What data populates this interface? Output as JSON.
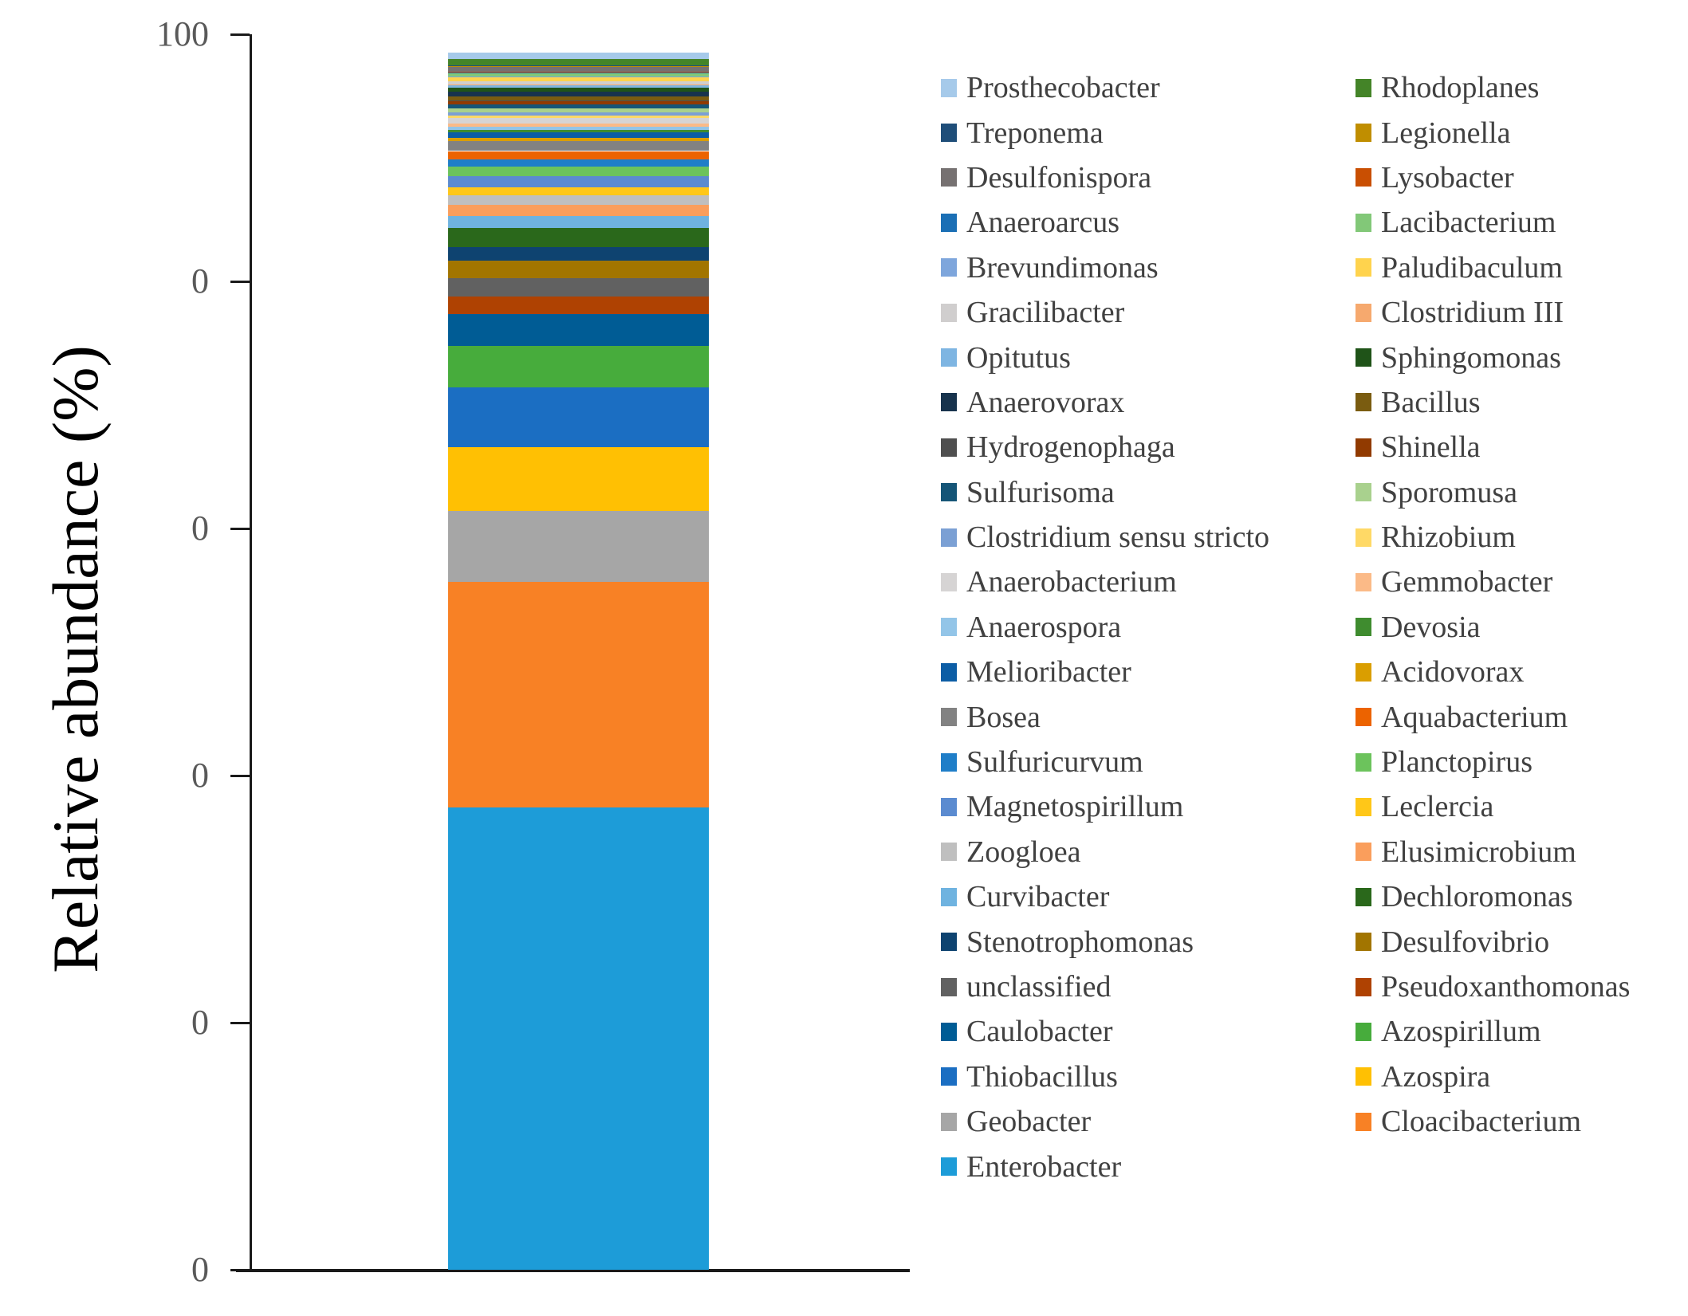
{
  "chart_data": {
    "type": "bar",
    "stacked": true,
    "title": "",
    "xlabel": "",
    "ylabel": "Relative abundance (%)",
    "ylim": [
      0,
      100
    ],
    "y_tick_labels": [
      "100",
      "0",
      "0",
      "0",
      "0",
      "0"
    ],
    "grid": false,
    "legend_position": "right",
    "categories": [
      ""
    ],
    "axis_color": "#1a1a1a",
    "tick_label_color": "#595959",
    "legend_text_color": "#414141",
    "series_bottom_to_top": [
      {
        "name": "Enterobacter",
        "color": "#1D9CD8",
        "value": 37.4
      },
      {
        "name": "Cloacibacterium",
        "color": "#F88125",
        "value": 18.3
      },
      {
        "name": "Geobacter",
        "color": "#A6A6A6",
        "value": 5.7
      },
      {
        "name": "Azospira",
        "color": "#FFC003",
        "value": 5.2
      },
      {
        "name": "Thiobacillus",
        "color": "#1B6EC2",
        "value": 4.8
      },
      {
        "name": "Azospirillum",
        "color": "#47AC3C",
        "value": 3.35
      },
      {
        "name": "Caulobacter",
        "color": "#005C95",
        "value": 2.6
      },
      {
        "name": "Pseudoxanthomonas",
        "color": "#AF4202",
        "value": 1.4
      },
      {
        "name": "unclassified",
        "color": "#616161",
        "value": 1.5
      },
      {
        "name": "Desulfovibrio",
        "color": "#A27500",
        "value": 1.4
      },
      {
        "name": "Stenotrophomonas",
        "color": "#0E4370",
        "value": 1.15
      },
      {
        "name": "Dechloromonas",
        "color": "#2A681B",
        "value": 1.5
      },
      {
        "name": "Curvibacter",
        "color": "#6FB3E0",
        "value": 1.0
      },
      {
        "name": "Elusimicrobium",
        "color": "#FA9E5C",
        "value": 0.9
      },
      {
        "name": "Zoogloea",
        "color": "#BFBFBF",
        "value": 0.8
      },
      {
        "name": "Leclercia",
        "color": "#FFC718",
        "value": 0.6
      },
      {
        "name": "Magnetospirillum",
        "color": "#5B8BD0",
        "value": 0.9
      },
      {
        "name": "Planctopirus",
        "color": "#6CC35C",
        "value": 0.8
      },
      {
        "name": "Sulfuricurvum",
        "color": "#1F7EC8",
        "value": 0.6
      },
      {
        "name": "Aquabacterium",
        "color": "#EC6300",
        "value": 0.65
      },
      {
        "name": "Bosea",
        "color": "#828282",
        "value": 0.8
      },
      {
        "name": "Acidovorax",
        "color": "#DA9E00",
        "value": 0.25
      },
      {
        "name": "Melioribacter",
        "color": "#0C5DA5",
        "value": 0.45
      },
      {
        "name": "Devosia",
        "color": "#3F8C2F",
        "value": 0.2
      },
      {
        "name": "Anaerospora",
        "color": "#93C5E8",
        "value": 0.25
      },
      {
        "name": "Gemmobacter",
        "color": "#FBBA87",
        "value": 0.3
      },
      {
        "name": "Anaerobacterium",
        "color": "#D6D4D4",
        "value": 0.4
      },
      {
        "name": "Rhizobium",
        "color": "#FFD966",
        "value": 0.25
      },
      {
        "name": "Clostridium sensu stricto",
        "color": "#7BA0D4",
        "value": 0.25
      },
      {
        "name": "Sporomusa",
        "color": "#A9D18E",
        "value": 0.3
      },
      {
        "name": "Sulfurisoma",
        "color": "#155577",
        "value": 0.3
      },
      {
        "name": "Shinella",
        "color": "#913A00",
        "value": 0.3
      },
      {
        "name": "Hydrogenophaga",
        "color": "#4F4F4F",
        "value": 0.05
      },
      {
        "name": "Bacillus",
        "color": "#7A5C10",
        "value": 0.3
      },
      {
        "name": "Anaerovorax",
        "color": "#17334D",
        "value": 0.4
      },
      {
        "name": "Sphingomonas",
        "color": "#1F5318",
        "value": 0.3
      },
      {
        "name": "Opitutus",
        "color": "#7EB5E2",
        "value": 0.25
      },
      {
        "name": "Clostridium III",
        "color": "#F6A96E",
        "value": 0.05
      },
      {
        "name": "Gracilibacter",
        "color": "#D0CECE",
        "value": 0.25
      },
      {
        "name": "Paludibaculum",
        "color": "#FFD34D",
        "value": 0.3
      },
      {
        "name": "Brevundimonas",
        "color": "#7EA6DC",
        "value": 0.05
      },
      {
        "name": "Lacibacterium",
        "color": "#82C878",
        "value": 0.3
      },
      {
        "name": "Anaeroarcus",
        "color": "#1B6FB5",
        "value": 0.05
      },
      {
        "name": "Lysobacter",
        "color": "#C94F02",
        "value": 0.05
      },
      {
        "name": "Desulfonispora",
        "color": "#767171",
        "value": 0.45
      },
      {
        "name": "Legionella",
        "color": "#C08E00",
        "value": 0.05
      },
      {
        "name": "Treponema",
        "color": "#1F4E79",
        "value": 0.05
      },
      {
        "name": "Rhodoplanes",
        "color": "#448428",
        "value": 0.5
      },
      {
        "name": "Prosthecobacter",
        "color": "#A6CAEA",
        "value": 0.5
      }
    ]
  },
  "legend": {
    "column_1": [
      "Prosthecobacter",
      "Treponema",
      "Desulfonispora",
      "Anaeroarcus",
      "Brevundimonas",
      "Gracilibacter",
      "Opitutus",
      "Anaerovorax",
      "Hydrogenophaga",
      "Sulfurisoma",
      "Clostridium sensu stricto",
      "Anaerobacterium",
      "Anaerospora",
      "Melioribacter",
      "Bosea",
      "Sulfuricurvum",
      "Magnetospirillum",
      "Zoogloea",
      "Curvibacter",
      "Stenotrophomonas",
      "unclassified",
      "Caulobacter",
      "Thiobacillus",
      "Geobacter",
      "Enterobacter"
    ],
    "column_2": [
      "Rhodoplanes",
      "Legionella",
      "Lysobacter",
      "Lacibacterium",
      "Paludibaculum",
      "Clostridium III",
      "Sphingomonas",
      "Bacillus",
      "Shinella",
      "Sporomusa",
      "Rhizobium",
      "Gemmobacter",
      "Devosia",
      "Acidovorax",
      "Aquabacterium",
      "Planctopirus",
      "Leclercia",
      "Elusimicrobium",
      "Dechloromonas",
      "Desulfovibrio",
      "Pseudoxanthomonas",
      "Azospirillum",
      "Azospira",
      "Cloacibacterium"
    ]
  }
}
